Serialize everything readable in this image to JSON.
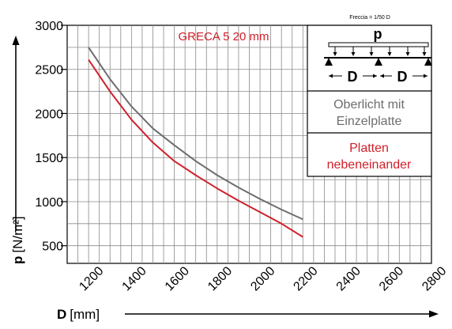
{
  "chart_data": {
    "type": "line",
    "title": "GRECA 5 20 mm",
    "xlabel": "D",
    "xunit": "[mm]",
    "ylabel": "p",
    "yunit": "[N/m²]",
    "xlim": [
      1100,
      2800
    ],
    "ylim": [
      300,
      3000
    ],
    "xticks": [
      1200,
      1400,
      1600,
      1800,
      2000,
      2200,
      2400,
      2600,
      2800
    ],
    "yticks": [
      500,
      1000,
      1500,
      2000,
      2500,
      3000
    ],
    "grid": true,
    "series": [
      {
        "name": "Oberlicht mit Einzelplatte",
        "color": "#6d6d6d",
        "x": [
          1200,
          1300,
          1400,
          1500,
          1600,
          1700,
          1800,
          1900,
          2000,
          2100,
          2200
        ],
        "y": [
          2750,
          2390,
          2080,
          1830,
          1640,
          1460,
          1300,
          1160,
          1030,
          910,
          800
        ]
      },
      {
        "name": "Platten nebeneinander",
        "color": "#d0202a",
        "x": [
          1200,
          1300,
          1400,
          1500,
          1600,
          1700,
          1800,
          1900,
          2000,
          2100,
          2200
        ],
        "y": [
          2610,
          2250,
          1930,
          1670,
          1460,
          1300,
          1150,
          1010,
          880,
          750,
          600
        ]
      }
    ]
  },
  "legend": {
    "note": "Freccia = 1/50 D",
    "diagram_p": "p",
    "diagram_d1": "D",
    "diagram_d2": "D",
    "entry1_line1": "Oberlicht mit",
    "entry1_line2": "Einzelplatte",
    "entry2_line1": "Platten",
    "entry2_line2": "nebeneinander"
  },
  "colors": {
    "grid": "#8a8a8a",
    "axis": "#000000",
    "title": "#d0202a",
    "gray_series": "#6d6d6d",
    "red_series": "#d0202a"
  }
}
